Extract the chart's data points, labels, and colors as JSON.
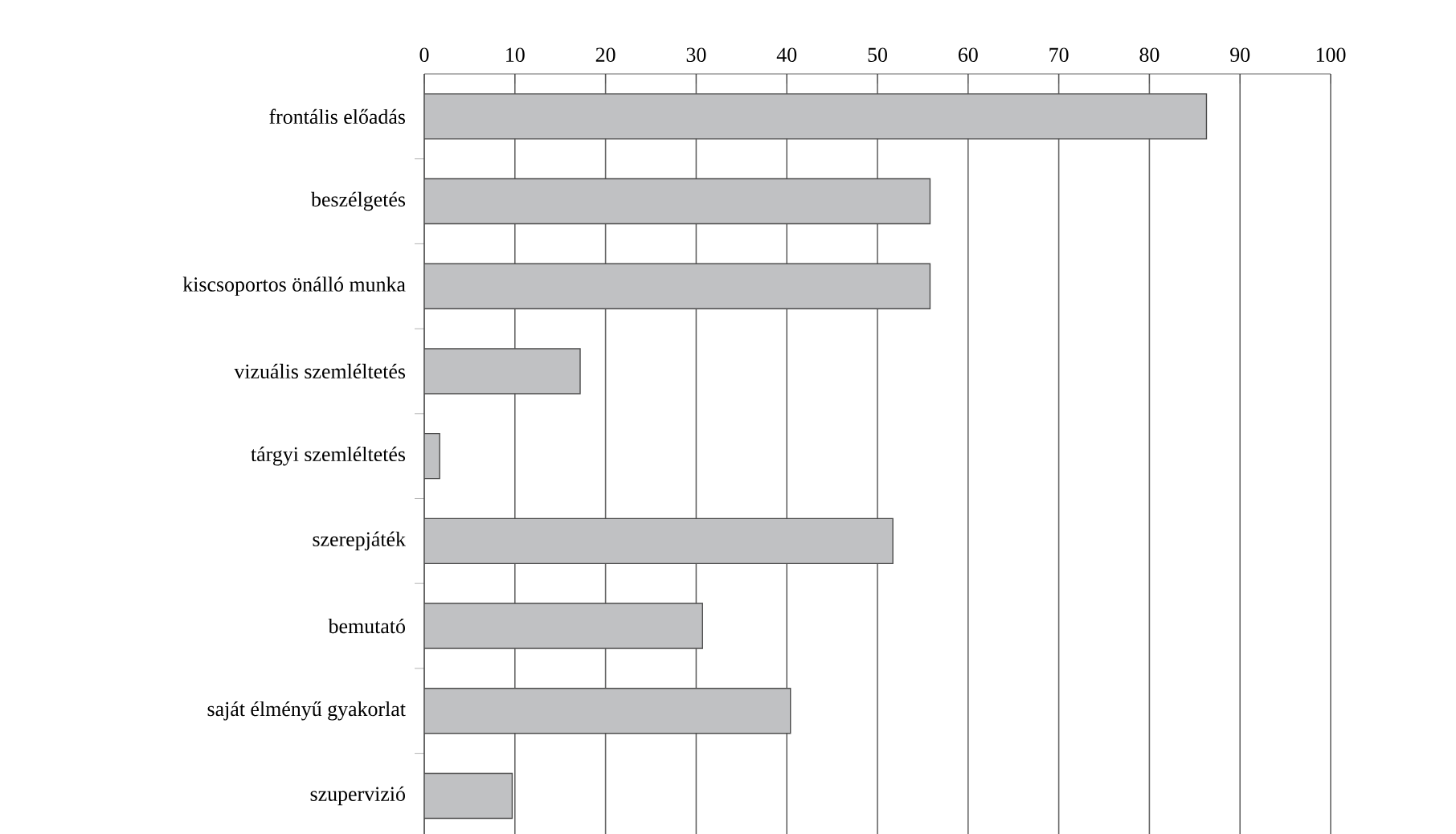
{
  "chart_data": {
    "type": "bar",
    "orientation": "horizontal",
    "categories": [
      "frontális előadás",
      "beszélgetés",
      "kiscsoportos önálló munka",
      "vizuális szemléltetés",
      "tárgyi szemléltetés",
      "szerepjáték",
      "bemutató",
      "saját élményű gyakorlat",
      "szupervizió"
    ],
    "values": [
      86.3,
      55.8,
      55.8,
      17.2,
      1.7,
      51.7,
      30.7,
      40.4,
      9.7
    ],
    "color": "#c0c1c3",
    "xlim": [
      0,
      100
    ],
    "xticks": [
      0,
      10,
      20,
      30,
      40,
      50,
      60,
      70,
      80,
      90,
      100
    ],
    "grid": "x"
  }
}
